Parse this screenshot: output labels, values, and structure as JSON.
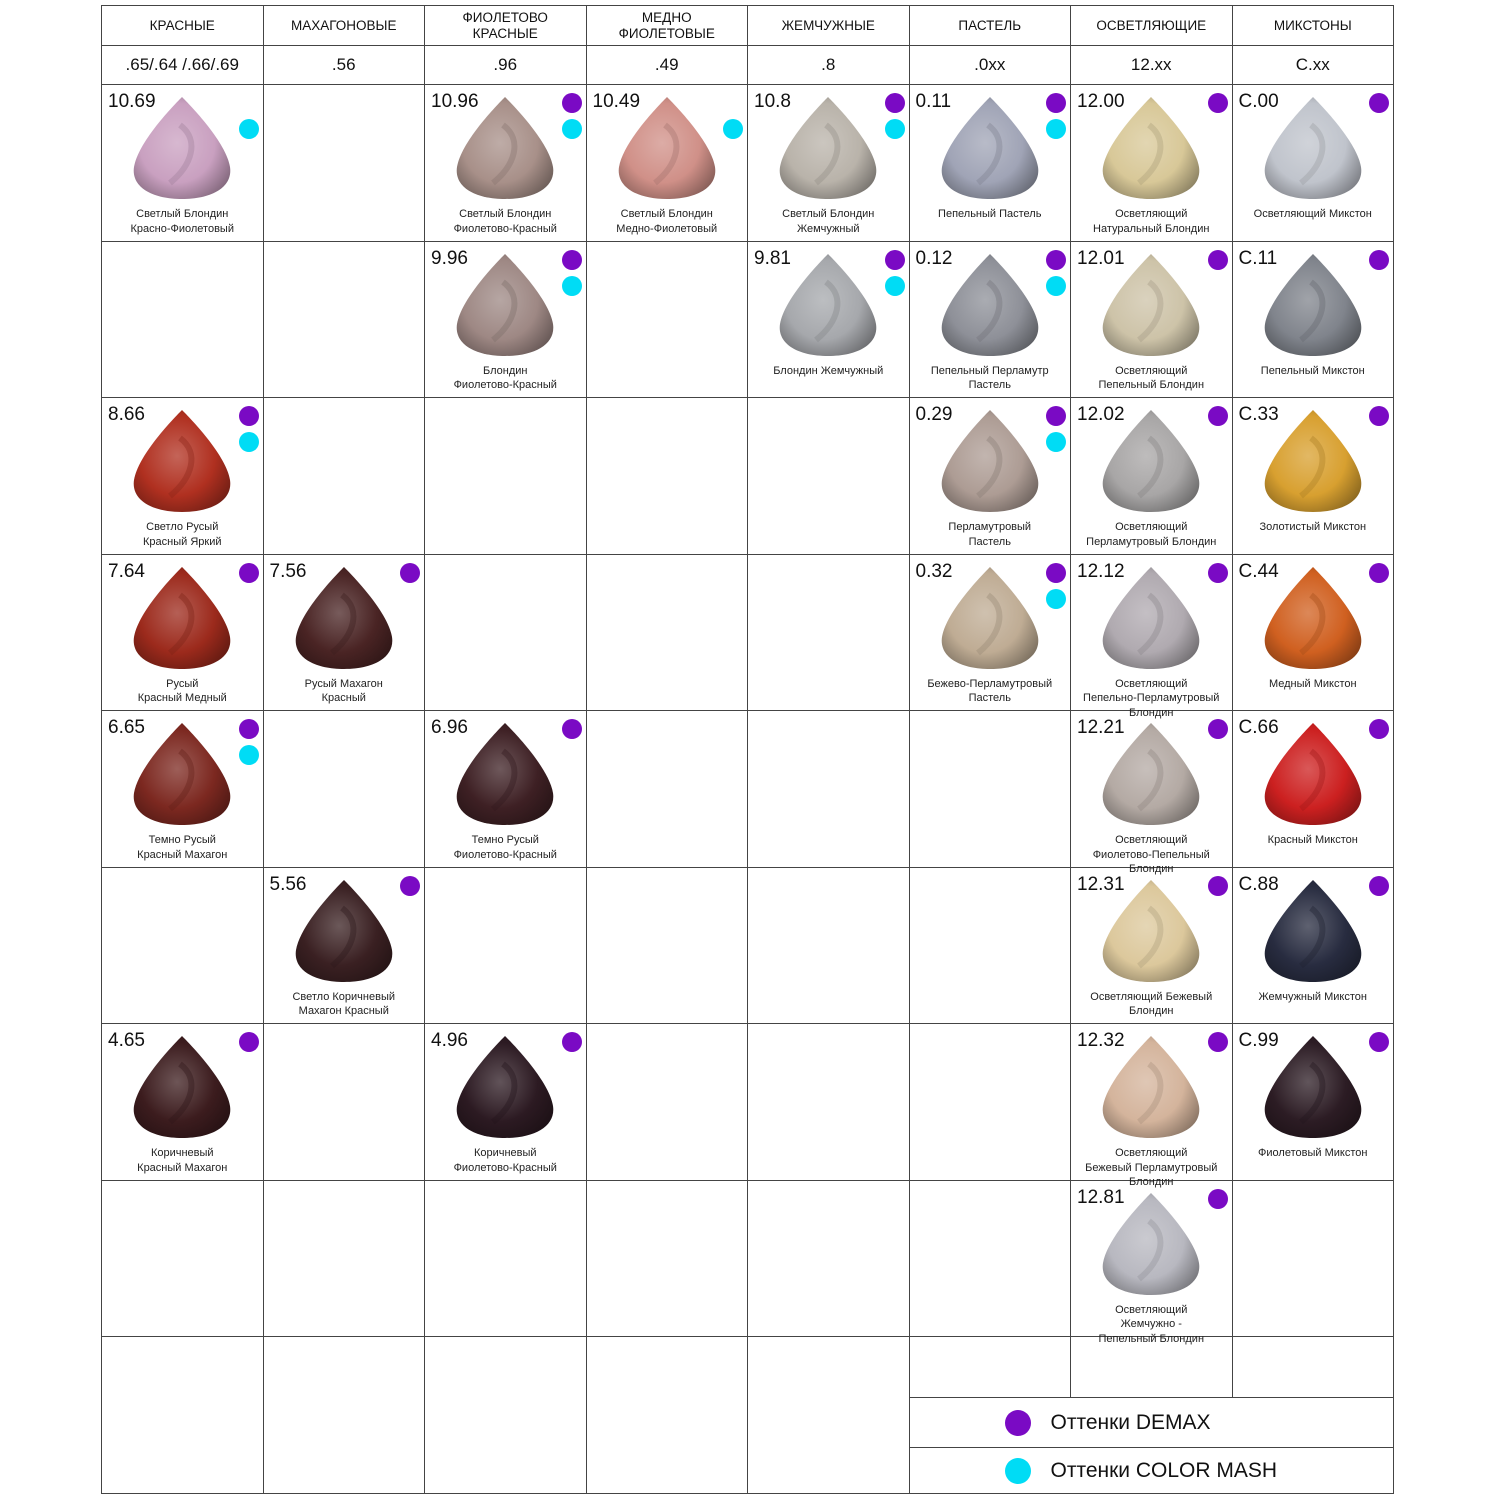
{
  "colors": {
    "demax": "#7a0ac4",
    "color_mash": "#00dcf5"
  },
  "headers": [
    "КРАСНЫЕ",
    "МАХАГОНОВЫЕ",
    "ФИОЛЕТОВО\nКРАСНЫЕ",
    "МЕДНО\nФИОЛЕТОВЫЕ",
    "ЖЕМЧУЖНЫЕ",
    "ПАСТЕЛЬ",
    "ОСВЕТЛЯЮЩИЕ",
    "МИКСТОНЫ"
  ],
  "subheaders": [
    ".65/.64 /.66/.69",
    ".56",
    ".96",
    ".49",
    ".8",
    ".0xx",
    "12.xx",
    "C.xx"
  ],
  "rows": [
    [
      {
        "code": "10.69",
        "name": "Светлый Блондин\nКрасно-Фиолетовый",
        "color": "#c9a0c0",
        "demax": false,
        "mash": true
      },
      null,
      {
        "code": "10.96",
        "name": "Светлый Блондин\nФиолетово-Красный",
        "color": "#a89089",
        "demax": true,
        "mash": true
      },
      {
        "code": "10.49",
        "name": "Светлый Блондин\nМедно-Фиолетовый",
        "color": "#d09088",
        "demax": false,
        "mash": true
      },
      {
        "code": "10.8",
        "name": "Светлый Блондин\nЖемчужный",
        "color": "#b9b3aa",
        "demax": true,
        "mash": true
      },
      {
        "code": "0.11",
        "name": "Пепельный Пастель",
        "color": "#a0a4b6",
        "demax": true,
        "mash": true
      },
      {
        "code": "12.00",
        "name": "Осветляющий\nНатуральный Блондин",
        "color": "#d8c898",
        "demax": true,
        "mash": false
      },
      {
        "code": "C.00",
        "name": "Осветляющий Микстон",
        "color": "#c0c4cc",
        "demax": true,
        "mash": false
      }
    ],
    [
      null,
      null,
      {
        "code": "9.96",
        "name": "Блондин\nФиолетово-Красный",
        "color": "#9e8884",
        "demax": true,
        "mash": true
      },
      null,
      {
        "code": "9.81",
        "name": "Блондин Жемчужный",
        "color": "#a6a8ac",
        "demax": true,
        "mash": true
      },
      {
        "code": "0.12",
        "name": "Пепельный Перламутр\nПастель",
        "color": "#8e9098",
        "demax": true,
        "mash": true
      },
      {
        "code": "12.01",
        "name": "Осветляющий\nПепельный Блондин",
        "color": "#cdc3a8",
        "demax": true,
        "mash": false
      },
      {
        "code": "C.11",
        "name": "Пепельный Микстон",
        "color": "#80848c",
        "demax": true,
        "mash": false
      }
    ],
    [
      {
        "code": "8.66",
        "name": "Светло Русый\nКрасный Яркий",
        "color": "#b03020",
        "demax": true,
        "mash": true
      },
      null,
      null,
      null,
      null,
      {
        "code": "0.29",
        "name": "Перламутровый\nПастель",
        "color": "#ad9c94",
        "demax": true,
        "mash": true
      },
      {
        "code": "12.02",
        "name": "Осветляющий\nПерламутровый Блондин",
        "color": "#a8a6a6",
        "demax": true,
        "mash": false
      },
      {
        "code": "C.33",
        "name": "Золотистый Микстон",
        "color": "#d8a030",
        "demax": true,
        "mash": false
      }
    ],
    [
      {
        "code": "7.64",
        "name": "Русый\nКрасный Медный",
        "color": "#9c2a1c",
        "demax": true,
        "mash": false
      },
      {
        "code": "7.56",
        "name": "Русый Махагон\nКрасный",
        "color": "#4a2424",
        "demax": true,
        "mash": false
      },
      null,
      null,
      null,
      {
        "code": "0.32",
        "name": "Бежево-Перламутровый\nПастель",
        "color": "#bfac94",
        "demax": true,
        "mash": true
      },
      {
        "code": "12.12",
        "name": "Осветляющий\nПепельно-Перламутровый\nБлондин",
        "color": "#b0aab0",
        "demax": true,
        "mash": false
      },
      {
        "code": "C.44",
        "name": "Медный Микстон",
        "color": "#d06020",
        "demax": true,
        "mash": false
      }
    ],
    [
      {
        "code": "6.65",
        "name": "Темно Русый\nКрасный Махагон",
        "color": "#7c2820",
        "demax": true,
        "mash": true
      },
      null,
      {
        "code": "6.96",
        "name": "Темно Русый\nФиолетово-Красный",
        "color": "#3e2024",
        "demax": true,
        "mash": false
      },
      null,
      null,
      null,
      {
        "code": "12.21",
        "name": "Осветляющий\nФиолетово-Пепельный\nБлондин",
        "color": "#b4aaa4",
        "demax": true,
        "mash": false
      },
      {
        "code": "C.66",
        "name": "Красный Микстон",
        "color": "#cc2020",
        "demax": true,
        "mash": false
      }
    ],
    [
      null,
      {
        "code": "5.56",
        "name": "Светло Коричневый\nМахагон Красный",
        "color": "#3a2022",
        "demax": true,
        "mash": false
      },
      null,
      null,
      null,
      null,
      {
        "code": "12.31",
        "name": "Осветляющий Бежевый\nБлондин",
        "color": "#dcc89c",
        "demax": true,
        "mash": false
      },
      {
        "code": "C.88",
        "name": "Жемчужный Микстон",
        "color": "#282c40",
        "demax": true,
        "mash": false
      }
    ],
    [
      {
        "code": "4.65",
        "name": "Коричневый\nКрасный Махагон",
        "color": "#3c1c1e",
        "demax": true,
        "mash": false
      },
      null,
      {
        "code": "4.96",
        "name": "Коричневый\nФиолетово-Красный",
        "color": "#2c1a22",
        "demax": true,
        "mash": false
      },
      null,
      null,
      null,
      {
        "code": "12.32",
        "name": "Осветляющий\nБежевый Перламутровый\nБлондин",
        "color": "#d4b49c",
        "demax": true,
        "mash": false
      },
      {
        "code": "C.99",
        "name": "Фиолетовый Микстон",
        "color": "#2c1c24",
        "demax": true,
        "mash": false
      }
    ],
    [
      null,
      null,
      null,
      null,
      null,
      null,
      {
        "code": "12.81",
        "name": "Осветляющий\nЖемчужно -\nПепельный Блондин",
        "color": "#b8b8c0",
        "demax": true,
        "mash": false
      },
      null
    ]
  ],
  "legend": {
    "demax": "Оттенки DEMAX",
    "color_mash": "Оттенки COLOR MASH"
  }
}
